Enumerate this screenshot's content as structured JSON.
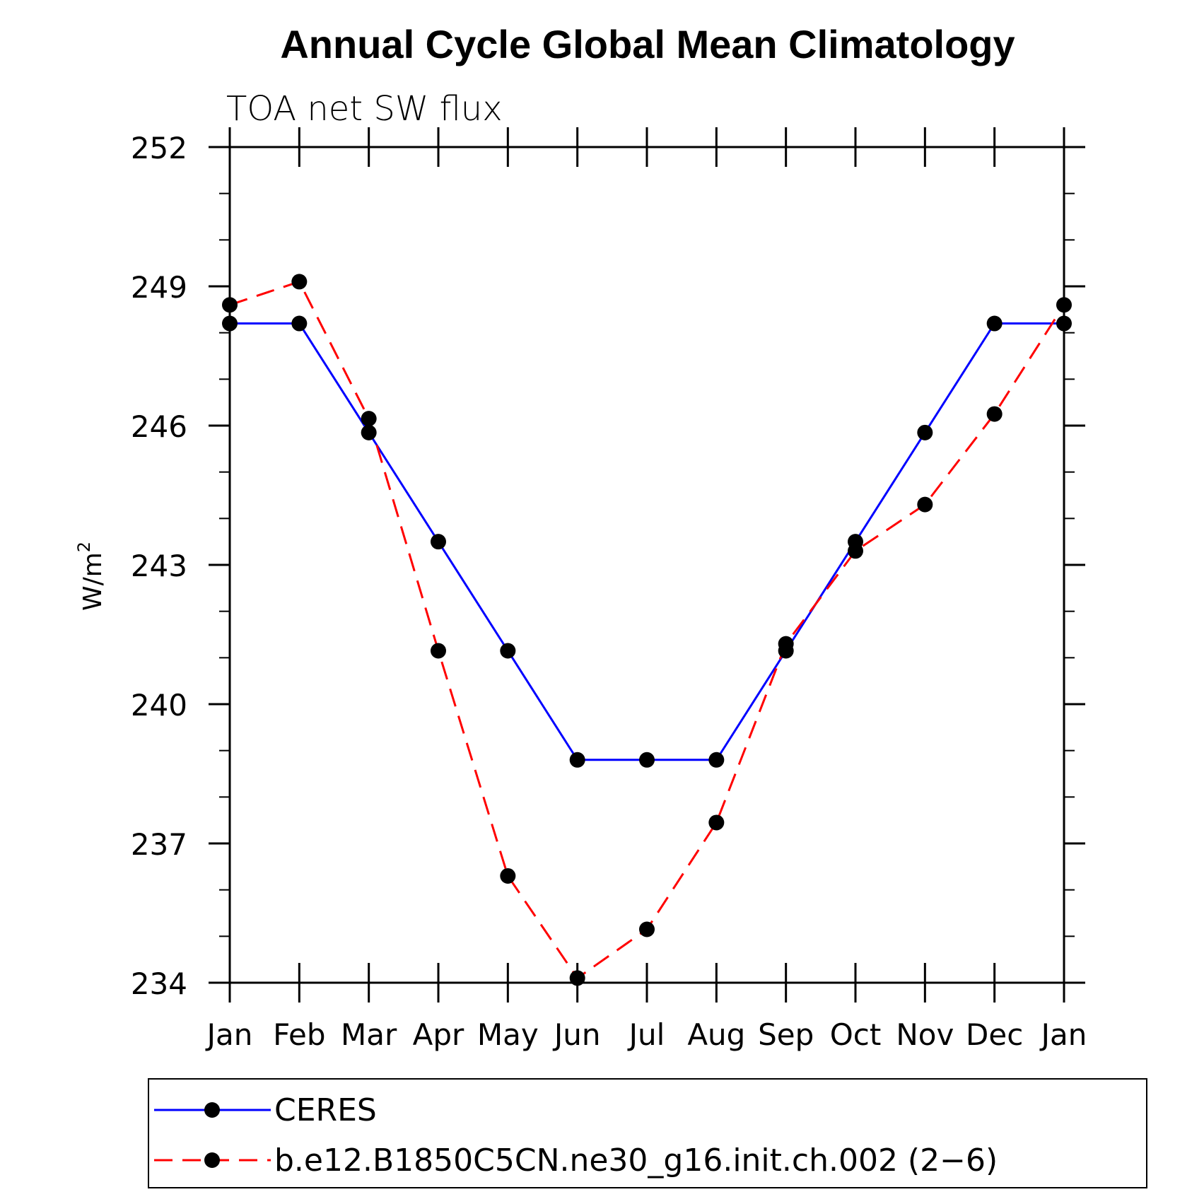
{
  "chart_data": {
    "type": "line",
    "title": "Annual Cycle Global Mean Climatology",
    "subtitle": "TOA net SW flux",
    "ylabel": "W/m",
    "ylabel_superscript": "2",
    "ylim": [
      234,
      252
    ],
    "yticks": [
      234,
      237,
      240,
      243,
      246,
      249,
      252
    ],
    "categories": [
      "Jan",
      "Feb",
      "Mar",
      "Apr",
      "May",
      "Jun",
      "Jul",
      "Aug",
      "Sep",
      "Oct",
      "Nov",
      "Dec",
      "Jan"
    ],
    "series": [
      {
        "name": "CERES",
        "color": "#0000ff",
        "style": "solid",
        "values": [
          248.2,
          248.2,
          245.85,
          243.5,
          241.15,
          238.8,
          238.8,
          238.8,
          241.15,
          243.5,
          245.85,
          248.2,
          248.2
        ]
      },
      {
        "name": "b.e12.B1850C5CN.ne30_g16.init.ch.002 (2−6)",
        "color": "#ff0000",
        "style": "dashed",
        "values": [
          248.6,
          249.1,
          246.15,
          241.15,
          236.3,
          234.1,
          235.15,
          237.45,
          241.3,
          243.3,
          244.3,
          246.25,
          248.6
        ]
      }
    ],
    "legend_position": "bottom"
  }
}
